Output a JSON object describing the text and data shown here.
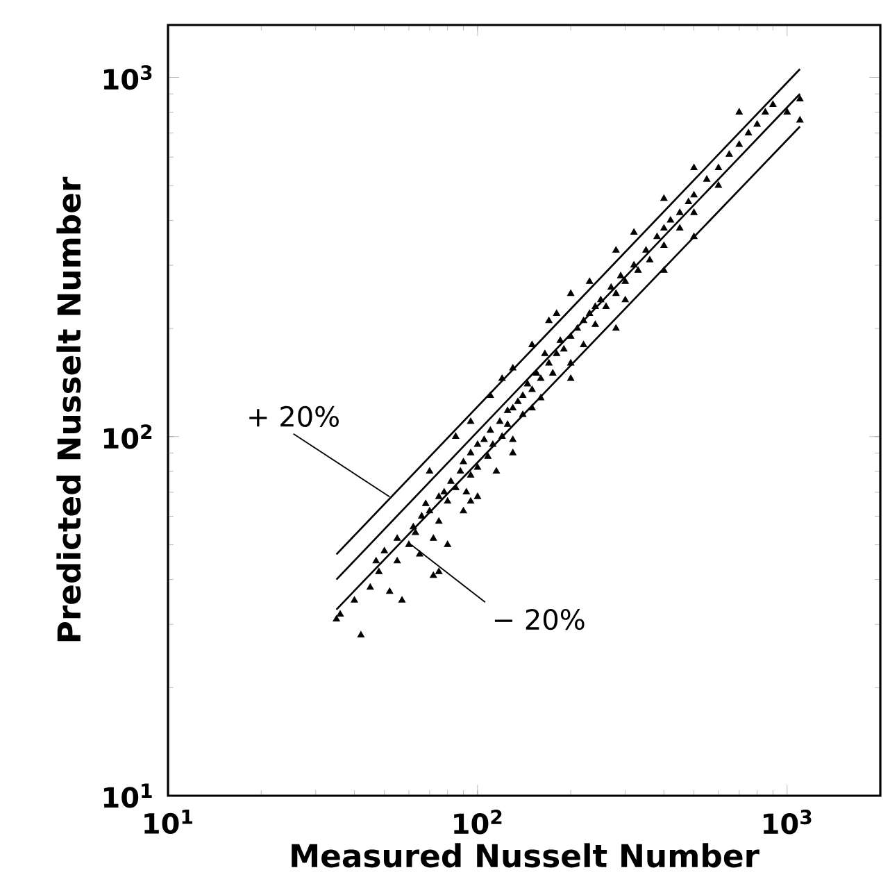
{
  "chart_data": {
    "type": "scatter",
    "xlabel": "Measured Nusselt Number",
    "ylabel": "Predicted Nusselt Number",
    "log": "xy",
    "xlim": [
      10,
      2000
    ],
    "ylim": [
      10,
      1400
    ],
    "xticks": [
      {
        "value": 10,
        "label": "10$^{1}$"
      },
      {
        "value": 100,
        "label": "10$^{2}$"
      },
      {
        "value": 1000,
        "label": "10$^{3}$"
      }
    ],
    "yticks": [
      {
        "value": 10,
        "label": "10$^{1}$"
      },
      {
        "value": 100,
        "label": "10$^{2}$"
      },
      {
        "value": 1000,
        "label": "10$^{3}$"
      }
    ],
    "annotations": [
      {
        "text": "+ 20%",
        "x": 52,
        "y": 68
      },
      {
        "text": "− 20%",
        "x": 61,
        "y": 50
      }
    ],
    "series": [
      {
        "color": "#000000",
        "marker": "triangle",
        "x": [
          35,
          36,
          40,
          42,
          45,
          47,
          48,
          50,
          52,
          55,
          55,
          57,
          60,
          62,
          63,
          65,
          66,
          68,
          70,
          72,
          72,
          75,
          75,
          78,
          80,
          80,
          82,
          85,
          88,
          90,
          90,
          92,
          95,
          95,
          100,
          100,
          100,
          105,
          108,
          110,
          112,
          115,
          118,
          120,
          125,
          125,
          130,
          130,
          135,
          140,
          140,
          145,
          150,
          150,
          155,
          160,
          160,
          165,
          170,
          175,
          180,
          185,
          190,
          200,
          200,
          210,
          220,
          220,
          230,
          240,
          240,
          250,
          260,
          270,
          280,
          290,
          300,
          300,
          320,
          330,
          350,
          360,
          380,
          400,
          400,
          420,
          450,
          450,
          480,
          500,
          500,
          550,
          600,
          600,
          650,
          700,
          750,
          800,
          850,
          900,
          1000,
          1100,
          1100,
          70,
          85,
          95,
          110,
          120,
          130,
          150,
          170,
          180,
          200,
          230,
          280,
          320,
          400,
          500,
          700,
          75,
          95,
          130,
          200,
          280,
          400,
          500
        ],
        "values": [
          31,
          32,
          35,
          28,
          38,
          45,
          42,
          48,
          37,
          52,
          45,
          35,
          50,
          56,
          54,
          47,
          60,
          65,
          62,
          41,
          52,
          68,
          58,
          70,
          66,
          50,
          75,
          72,
          80,
          62,
          85,
          70,
          90,
          78,
          95,
          82,
          68,
          98,
          88,
          104,
          95,
          80,
          110,
          100,
          118,
          108,
          120,
          98,
          125,
          130,
          115,
          140,
          135,
          120,
          150,
          145,
          128,
          170,
          160,
          150,
          170,
          185,
          175,
          190,
          160,
          200,
          210,
          180,
          220,
          230,
          205,
          240,
          230,
          260,
          250,
          280,
          270,
          240,
          300,
          290,
          330,
          310,
          360,
          380,
          340,
          400,
          420,
          380,
          450,
          470,
          420,
          520,
          560,
          500,
          610,
          650,
          700,
          740,
          800,
          840,
          800,
          760,
          870,
          80,
          100,
          110,
          130,
          145,
          155,
          180,
          210,
          220,
          250,
          270,
          330,
          370,
          460,
          560,
          800,
          42,
          66,
          90,
          145,
          200,
          290,
          360
        ]
      },
      {
        "type": "line",
        "color": "#000000",
        "marker": "none",
        "line_style": "solid",
        "x": [
          35,
          1100
        ],
        "values": [
          47,
          1055
        ]
      },
      {
        "type": "line",
        "color": "#000000",
        "marker": "none",
        "line_style": "solid",
        "x": [
          35,
          1100
        ],
        "values": [
          40,
          900
        ]
      },
      {
        "type": "line",
        "color": "#000000",
        "marker": "none",
        "line_style": "solid",
        "x": [
          35,
          1100
        ],
        "values": [
          33,
          730
        ]
      }
    ]
  }
}
